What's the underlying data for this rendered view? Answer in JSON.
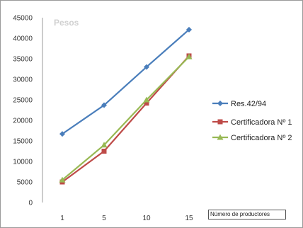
{
  "chart_data": {
    "type": "line",
    "ylabel": "Pesos",
    "xlabel": "Número de productores",
    "categories": [
      "1",
      "5",
      "10",
      "15"
    ],
    "ylim": [
      0,
      45000
    ],
    "yticks": [
      0,
      5000,
      10000,
      15000,
      20000,
      25000,
      30000,
      35000,
      40000,
      45000
    ],
    "grid": false,
    "legend": "right",
    "series": [
      {
        "name": "Res.42/94",
        "color": "#4a7ebb",
        "marker": "diamond",
        "values": [
          16700,
          23700,
          33000,
          42100
        ]
      },
      {
        "name": "Certificadora Nº 1",
        "color": "#be4b48",
        "marker": "square",
        "values": [
          5000,
          12500,
          24200,
          35700
        ]
      },
      {
        "name": "Certificadora Nº 2",
        "color": "#98b954",
        "marker": "triangle",
        "values": [
          5500,
          14000,
          25000,
          35500
        ]
      }
    ]
  }
}
